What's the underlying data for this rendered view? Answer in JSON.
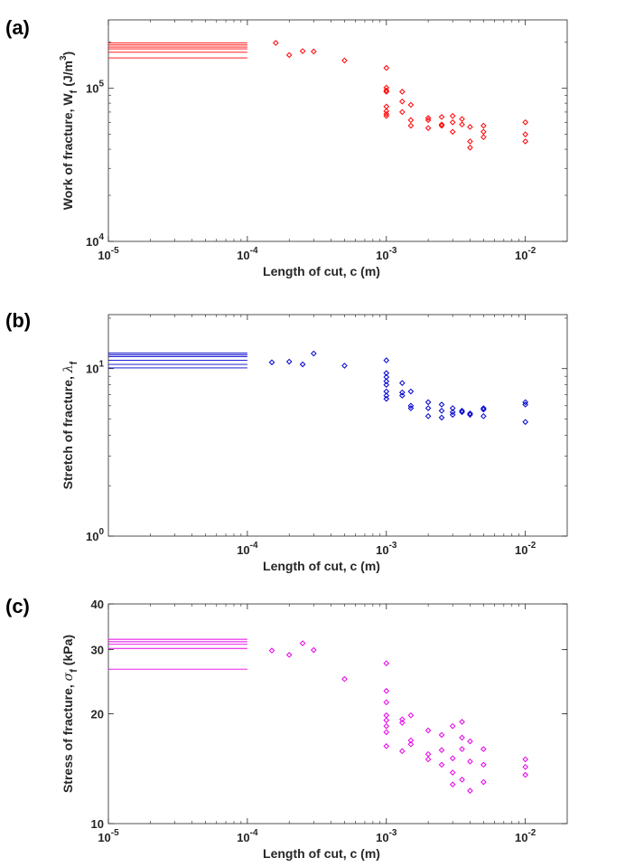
{
  "chart_data": [
    {
      "type": "scatter",
      "panel": "(a)",
      "xlabel": "Length of cut, c (m)",
      "ylabel": {
        "main": "Work of fracture, W",
        "sub": "f",
        "unit": " (J/m",
        "sup": "3",
        "end": ")"
      },
      "xscale": "log",
      "yscale": "log",
      "xlim": [
        1e-05,
        0.02
      ],
      "ylim": [
        10000,
        280000
      ],
      "xticks": [
        {
          "base": "10",
          "exp": "-5"
        },
        {
          "base": "10",
          "exp": "-4"
        },
        {
          "base": "10",
          "exp": "-3"
        },
        {
          "base": "10",
          "exp": "-2"
        }
      ],
      "xtick_values": [
        1e-05,
        0.0001,
        0.001,
        0.01
      ],
      "yticks": [
        {
          "base": "10",
          "exp": "4"
        },
        {
          "base": "10",
          "exp": "5"
        }
      ],
      "ytick_values": [
        10000,
        100000
      ],
      "color": "#ff0000",
      "reference_lines": {
        "x_from": 1e-05,
        "x_to": 0.0001,
        "y": [
          198000,
          192000,
          186000,
          181000,
          172000,
          158000
        ]
      },
      "points": [
        [
          0.00016,
          198000
        ],
        [
          0.0002,
          165000
        ],
        [
          0.00025,
          175000
        ],
        [
          0.0003,
          174000
        ],
        [
          0.0005,
          152000
        ],
        [
          0.001,
          136000
        ],
        [
          0.001,
          101000
        ],
        [
          0.001,
          97000
        ],
        [
          0.001,
          95000
        ],
        [
          0.001,
          76000
        ],
        [
          0.001,
          71000
        ],
        [
          0.001,
          68000
        ],
        [
          0.001,
          66000
        ],
        [
          0.0013,
          95000
        ],
        [
          0.0013,
          82000
        ],
        [
          0.0013,
          70000
        ],
        [
          0.0015,
          78000
        ],
        [
          0.0015,
          62000
        ],
        [
          0.0015,
          57000
        ],
        [
          0.002,
          64000
        ],
        [
          0.002,
          62000
        ],
        [
          0.002,
          55000
        ],
        [
          0.0025,
          65000
        ],
        [
          0.0025,
          58000
        ],
        [
          0.0025,
          57000
        ],
        [
          0.003,
          66000
        ],
        [
          0.003,
          60000
        ],
        [
          0.003,
          52000
        ],
        [
          0.0035,
          63000
        ],
        [
          0.0035,
          58000
        ],
        [
          0.004,
          56000
        ],
        [
          0.004,
          45000
        ],
        [
          0.004,
          41000
        ],
        [
          0.005,
          57000
        ],
        [
          0.005,
          52000
        ],
        [
          0.005,
          48000
        ],
        [
          0.01,
          60000
        ],
        [
          0.01,
          50000
        ],
        [
          0.01,
          45000
        ]
      ]
    },
    {
      "type": "scatter",
      "panel": "(b)",
      "xlabel": "Length of cut, c (m)",
      "ylabel": {
        "main": "Stretch of fracture, ",
        "greek": "λ",
        "sub": "f"
      },
      "xscale": "log",
      "yscale": "log",
      "xlim": [
        1e-05,
        0.02
      ],
      "ylim": [
        1,
        21
      ],
      "xticks": [
        {
          "base": "10",
          "exp": "-4"
        },
        {
          "base": "10",
          "exp": "-3"
        },
        {
          "base": "10",
          "exp": "-2"
        }
      ],
      "xtick_values": [
        0.0001,
        0.001,
        0.01
      ],
      "yticks": [
        {
          "base": "10",
          "exp": "0"
        },
        {
          "base": "10",
          "exp": "1"
        }
      ],
      "ytick_values": [
        1,
        10
      ],
      "color": "#0000cc",
      "reference_lines": {
        "x_from": 1e-05,
        "x_to": 0.0001,
        "y": [
          12.4,
          12.1,
          11.8,
          11.2,
          10.6,
          10.1
        ]
      },
      "points": [
        [
          0.00015,
          10.9
        ],
        [
          0.0002,
          11.0
        ],
        [
          0.00025,
          10.6
        ],
        [
          0.0003,
          12.3
        ],
        [
          0.0005,
          10.4
        ],
        [
          0.001,
          11.2
        ],
        [
          0.001,
          9.4
        ],
        [
          0.001,
          8.9
        ],
        [
          0.001,
          8.4
        ],
        [
          0.001,
          8.0
        ],
        [
          0.001,
          7.3
        ],
        [
          0.001,
          6.9
        ],
        [
          0.001,
          6.6
        ],
        [
          0.0013,
          8.2
        ],
        [
          0.0013,
          7.2
        ],
        [
          0.0013,
          6.9
        ],
        [
          0.0015,
          7.3
        ],
        [
          0.0015,
          6.0
        ],
        [
          0.0015,
          5.8
        ],
        [
          0.002,
          6.3
        ],
        [
          0.002,
          5.8
        ],
        [
          0.002,
          5.2
        ],
        [
          0.0025,
          6.1
        ],
        [
          0.0025,
          5.6
        ],
        [
          0.0025,
          5.1
        ],
        [
          0.003,
          5.8
        ],
        [
          0.003,
          5.5
        ],
        [
          0.003,
          5.3
        ],
        [
          0.0035,
          5.6
        ],
        [
          0.0035,
          5.5
        ],
        [
          0.004,
          5.4
        ],
        [
          0.004,
          5.3
        ],
        [
          0.005,
          5.8
        ],
        [
          0.005,
          5.7
        ],
        [
          0.005,
          5.2
        ],
        [
          0.01,
          6.3
        ],
        [
          0.01,
          6.1
        ],
        [
          0.01,
          4.8
        ]
      ]
    },
    {
      "type": "scatter",
      "panel": "(c)",
      "xlabel": "Length of cut, c (m)",
      "ylabel": {
        "main": "Stress of fracture, ",
        "greek": "σ",
        "sub": "f",
        "unit": " (kPa)"
      },
      "xscale": "log",
      "yscale": "log",
      "xlim": [
        1e-05,
        0.02
      ],
      "ylim": [
        10,
        40
      ],
      "xticks": [
        {
          "base": "10",
          "exp": "-5"
        },
        {
          "base": "10",
          "exp": "-4"
        },
        {
          "base": "10",
          "exp": "-3"
        },
        {
          "base": "10",
          "exp": "-2"
        }
      ],
      "xtick_values": [
        1e-05,
        0.0001,
        0.001,
        0.01
      ],
      "yticks": [
        {
          "base": "10",
          "exp": ""
        },
        {
          "base": "20",
          "exp": ""
        },
        {
          "base": "30",
          "exp": ""
        },
        {
          "base": "40",
          "exp": ""
        }
      ],
      "ytick_values": [
        10,
        20,
        30,
        40
      ],
      "color": "#e600e6",
      "reference_lines": {
        "x_from": 1e-05,
        "x_to": 0.0001,
        "y": [
          32.0,
          31.5,
          31.0,
          30.2,
          26.5
        ]
      },
      "points": [
        [
          0.00015,
          29.8
        ],
        [
          0.0002,
          29.0
        ],
        [
          0.00025,
          31.2
        ],
        [
          0.0003,
          29.9
        ],
        [
          0.0005,
          24.9
        ],
        [
          0.001,
          27.5
        ],
        [
          0.001,
          23.1
        ],
        [
          0.001,
          21.5
        ],
        [
          0.001,
          19.8
        ],
        [
          0.001,
          19.2
        ],
        [
          0.001,
          18.5
        ],
        [
          0.001,
          17.8
        ],
        [
          0.001,
          16.3
        ],
        [
          0.0013,
          19.3
        ],
        [
          0.0013,
          18.9
        ],
        [
          0.0013,
          15.8
        ],
        [
          0.0015,
          19.8
        ],
        [
          0.0015,
          16.9
        ],
        [
          0.0015,
          16.5
        ],
        [
          0.002,
          18.0
        ],
        [
          0.002,
          15.5
        ],
        [
          0.002,
          15.0
        ],
        [
          0.0025,
          17.5
        ],
        [
          0.0025,
          15.9
        ],
        [
          0.0025,
          14.5
        ],
        [
          0.003,
          18.5
        ],
        [
          0.003,
          15.1
        ],
        [
          0.003,
          13.8
        ],
        [
          0.003,
          12.8
        ],
        [
          0.0035,
          19.0
        ],
        [
          0.0035,
          17.2
        ],
        [
          0.0035,
          16.0
        ],
        [
          0.0035,
          13.2
        ],
        [
          0.004,
          16.8
        ],
        [
          0.004,
          14.8
        ],
        [
          0.004,
          12.3
        ],
        [
          0.005,
          16.0
        ],
        [
          0.005,
          14.5
        ],
        [
          0.005,
          13.0
        ],
        [
          0.01,
          15.0
        ],
        [
          0.01,
          14.3
        ],
        [
          0.01,
          13.6
        ]
      ]
    }
  ]
}
